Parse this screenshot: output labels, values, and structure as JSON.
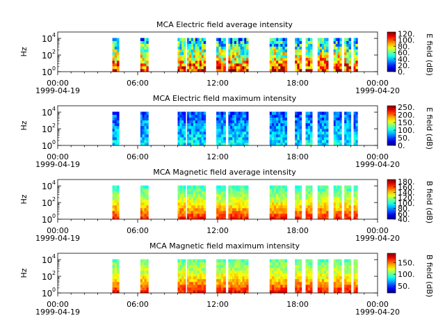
{
  "chart_data": [
    {
      "type": "heatmap",
      "title": "MCA  Electric field average intensity",
      "ylabel": "Hz",
      "colorbar_label": "E field (dB)",
      "colorbar_ticks": [
        "0.",
        "20.",
        "40.",
        "60.",
        "80.",
        "100.",
        "120."
      ],
      "colorbar_range": [
        0,
        125
      ],
      "y_ticks": [
        {
          "exp": "0"
        },
        {
          "exp": "2"
        },
        {
          "exp": "4"
        }
      ],
      "x_ticks": [
        {
          "time": "00:00",
          "date": "1999-04-19"
        },
        {
          "time": "06:00",
          "date": ""
        },
        {
          "time": "12:00",
          "date": ""
        },
        {
          "time": "18:00",
          "date": ""
        },
        {
          "time": "00:00",
          "date": "1999-04-20"
        }
      ],
      "xlim_hours": [
        0,
        24
      ],
      "segments_hours": [
        [
          4.1,
          4.6
        ],
        [
          6.2,
          6.8
        ],
        [
          9.0,
          9.6
        ],
        [
          9.7,
          11.1
        ],
        [
          11.9,
          12.6
        ],
        [
          12.8,
          14.3
        ],
        [
          15.9,
          17.2
        ],
        [
          17.8,
          18.3
        ],
        [
          18.6,
          19.1
        ],
        [
          19.5,
          20.3
        ],
        [
          20.7,
          21.3
        ],
        [
          21.5,
          22.0
        ],
        [
          22.2,
          22.5
        ]
      ],
      "intensity_profile": {
        "low_freq": 105,
        "mid_freq": 70,
        "high_freq": 40,
        "variability": 30
      }
    },
    {
      "type": "heatmap",
      "title": "MCA  Electric field maximum intensity",
      "ylabel": "Hz",
      "colorbar_label": "E field (dB)",
      "colorbar_ticks": [
        "0.",
        "50.",
        "100.",
        "150.",
        "200.",
        "250."
      ],
      "colorbar_range": [
        0,
        260
      ],
      "y_ticks": [
        {
          "exp": "0"
        },
        {
          "exp": "2"
        },
        {
          "exp": "4"
        }
      ],
      "x_ticks": [
        {
          "time": "00:00",
          "date": "1999-04-19"
        },
        {
          "time": "06:00",
          "date": ""
        },
        {
          "time": "12:00",
          "date": ""
        },
        {
          "time": "18:00",
          "date": ""
        },
        {
          "time": "00:00",
          "date": "1999-04-20"
        }
      ],
      "xlim_hours": [
        0,
        24
      ],
      "segments_hours": [
        [
          4.1,
          4.6
        ],
        [
          6.2,
          6.8
        ],
        [
          9.0,
          9.6
        ],
        [
          9.7,
          11.1
        ],
        [
          11.9,
          12.6
        ],
        [
          12.8,
          14.3
        ],
        [
          15.9,
          17.2
        ],
        [
          17.8,
          18.3
        ],
        [
          18.6,
          19.1
        ],
        [
          19.5,
          20.3
        ],
        [
          20.7,
          21.3
        ],
        [
          21.5,
          22.0
        ],
        [
          22.2,
          22.5
        ]
      ],
      "intensity_profile": {
        "low_freq": 95,
        "mid_freq": 75,
        "high_freq": 55,
        "variability": 30
      }
    },
    {
      "type": "heatmap",
      "title": "MCA  Magnetic field average intensity",
      "ylabel": "Hz",
      "colorbar_label": "B field (dB)",
      "colorbar_ticks": [
        "40.",
        "60.",
        "80.",
        "100.",
        "120.",
        "140.",
        "160.",
        "180."
      ],
      "colorbar_range": [
        40,
        188
      ],
      "y_ticks": [
        {
          "exp": "0"
        },
        {
          "exp": "2"
        },
        {
          "exp": "4"
        }
      ],
      "x_ticks": [
        {
          "time": "00:00",
          "date": "1999-04-19"
        },
        {
          "time": "06:00",
          "date": ""
        },
        {
          "time": "12:00",
          "date": ""
        },
        {
          "time": "18:00",
          "date": ""
        },
        {
          "time": "00:00",
          "date": "1999-04-20"
        }
      ],
      "xlim_hours": [
        0,
        24
      ],
      "segments_hours": [
        [
          4.1,
          4.6
        ],
        [
          6.2,
          6.8
        ],
        [
          9.0,
          9.6
        ],
        [
          9.7,
          11.1
        ],
        [
          11.9,
          12.6
        ],
        [
          12.8,
          14.3
        ],
        [
          15.9,
          17.2
        ],
        [
          17.8,
          18.3
        ],
        [
          18.6,
          19.1
        ],
        [
          19.5,
          20.3
        ],
        [
          20.7,
          21.3
        ],
        [
          21.5,
          22.0
        ],
        [
          22.2,
          22.5
        ]
      ],
      "intensity_profile": {
        "low_freq": 165,
        "mid_freq": 130,
        "high_freq": 105,
        "variability": 10
      }
    },
    {
      "type": "heatmap",
      "title": "MCA  Magnetic field maximum intensity",
      "ylabel": "Hz",
      "colorbar_label": "B field (dB)",
      "colorbar_ticks": [
        "50.",
        "100.",
        "150."
      ],
      "colorbar_range": [
        20,
        190
      ],
      "y_ticks": [
        {
          "exp": "0"
        },
        {
          "exp": "2"
        },
        {
          "exp": "4"
        }
      ],
      "x_ticks": [
        {
          "time": "00:00",
          "date": "1999-04-19"
        },
        {
          "time": "06:00",
          "date": ""
        },
        {
          "time": "12:00",
          "date": ""
        },
        {
          "time": "18:00",
          "date": ""
        },
        {
          "time": "00:00",
          "date": "1999-04-20"
        }
      ],
      "xlim_hours": [
        0,
        24
      ],
      "segments_hours": [
        [
          4.1,
          4.6
        ],
        [
          6.2,
          6.8
        ],
        [
          9.0,
          9.6
        ],
        [
          9.7,
          11.1
        ],
        [
          11.9,
          12.6
        ],
        [
          12.8,
          14.3
        ],
        [
          15.9,
          17.2
        ],
        [
          17.8,
          18.3
        ],
        [
          18.6,
          19.1
        ],
        [
          19.5,
          20.3
        ],
        [
          20.7,
          21.3
        ],
        [
          21.5,
          22.0
        ],
        [
          22.2,
          22.5
        ]
      ],
      "intensity_profile": {
        "low_freq": 165,
        "mid_freq": 125,
        "high_freq": 100,
        "variability": 12
      }
    }
  ]
}
